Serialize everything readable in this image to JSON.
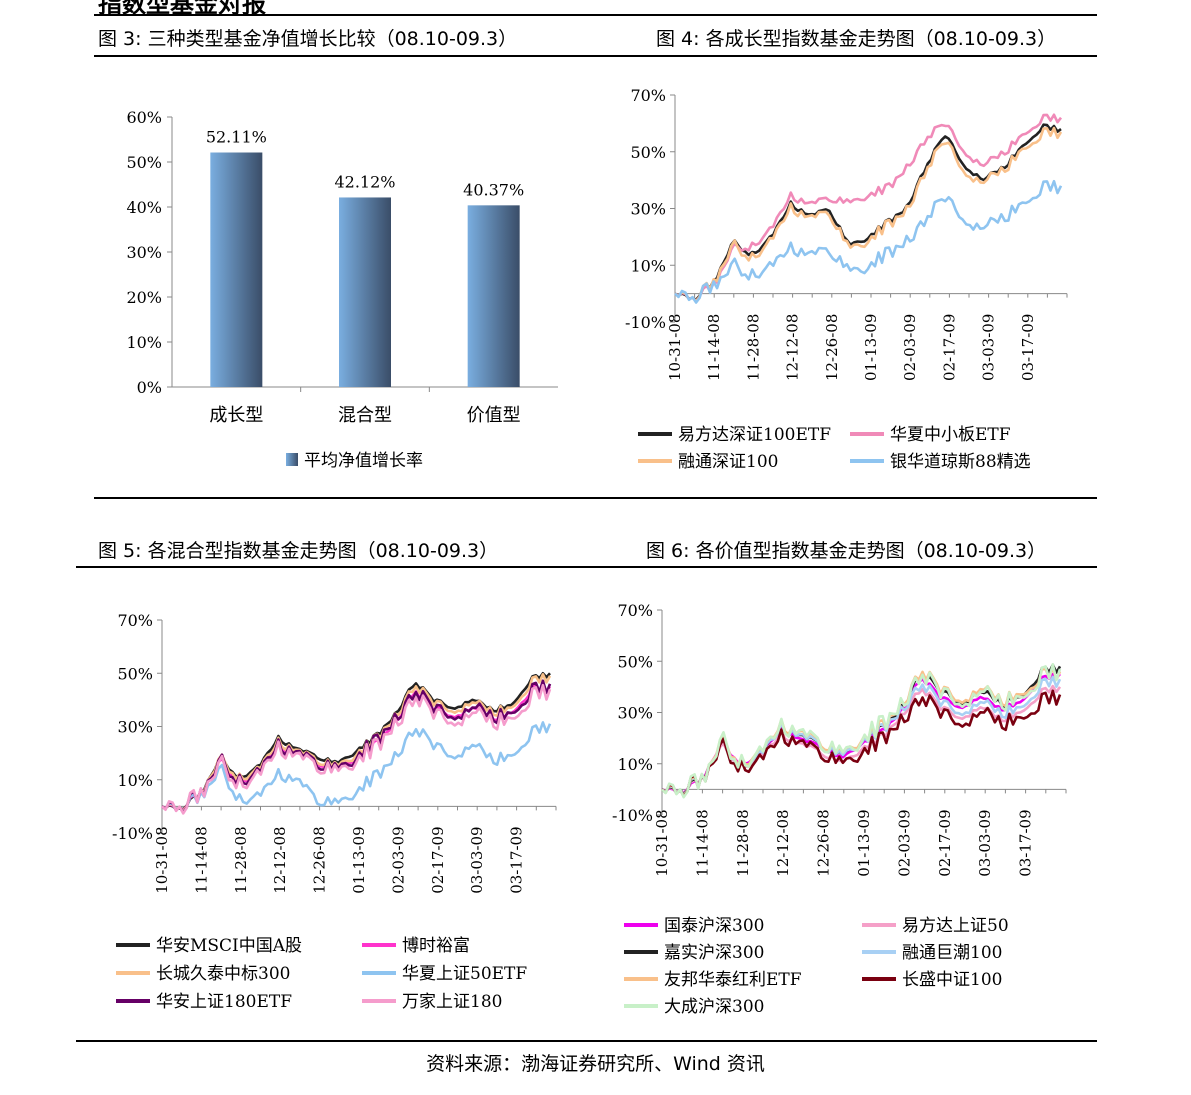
{
  "header_fragment": "指数型基金对报",
  "source_note": "资料来源：渤海证券研究所、Wind 资讯",
  "figures": [
    {
      "id": "fig3",
      "caption": "图 3:  三种类型基金净值增长比较（08.10-09.3）"
    },
    {
      "id": "fig4",
      "caption": "图 4:  各成长型指数基金走势图（08.10-09.3）"
    },
    {
      "id": "fig5",
      "caption": "图 5:  各混合型指数基金走势图（08.10-09.3）"
    },
    {
      "id": "fig6",
      "caption": "图 6:  各价值型指数基金走势图（08.10-09.3）"
    }
  ],
  "chart_data": [
    {
      "id": "fig3",
      "type": "bar",
      "categories": [
        "成长型",
        "混合型",
        "价值型"
      ],
      "values": [
        52.11,
        42.12,
        40.37
      ],
      "data_labels": [
        "52.11%",
        "42.12%",
        "40.37%"
      ],
      "ylim": [
        0,
        60
      ],
      "yticks": [
        "0%",
        "10%",
        "20%",
        "30%",
        "40%",
        "50%",
        "60%"
      ],
      "legend": "平均净值增长率",
      "legend_position": "bottom",
      "bar_color": "#7aaee0"
    },
    {
      "id": "fig4",
      "type": "line",
      "ylim": [
        -10,
        70
      ],
      "yticks": [
        "-10%",
        "10%",
        "30%",
        "50%",
        "70%"
      ],
      "xticks": [
        "10-31-08",
        "11-14-08",
        "11-28-08",
        "12-12-08",
        "12-26-08",
        "01-13-09",
        "02-03-09",
        "02-17-09",
        "03-03-09",
        "03-17-09"
      ],
      "legend_position": "bottom",
      "series": [
        {
          "name": "易方达深证100ETF",
          "color": "#222222",
          "values": [
            0,
            -2,
            4,
            18,
            14,
            20,
            32,
            27,
            30,
            17,
            20,
            25,
            30,
            45,
            56,
            45,
            40,
            44,
            52,
            59,
            58
          ]
        },
        {
          "name": "华夏中小板ETF",
          "color": "#f08ab8",
          "values": [
            0,
            -2,
            3,
            16,
            17,
            23,
            35,
            31,
            34,
            32,
            35,
            37,
            44,
            55,
            60,
            50,
            45,
            49,
            56,
            62,
            62
          ]
        },
        {
          "name": "融通深证100",
          "color": "#f9c08a",
          "values": [
            0,
            -2,
            4,
            17,
            13,
            19,
            31,
            26,
            29,
            16,
            19,
            24,
            29,
            44,
            54,
            43,
            39,
            43,
            51,
            57,
            57
          ]
        },
        {
          "name": "银华道琼斯88精选",
          "color": "#8ec4f0",
          "values": [
            0,
            -2,
            3,
            10,
            7,
            10,
            17,
            13,
            16,
            8,
            10,
            14,
            18,
            27,
            34,
            26,
            23,
            26,
            32,
            38,
            38
          ]
        }
      ]
    },
    {
      "id": "fig5",
      "type": "line",
      "ylim": [
        -10,
        70
      ],
      "yticks": [
        "-10%",
        "10%",
        "30%",
        "50%",
        "70%"
      ],
      "xticks": [
        "10-31-08",
        "11-14-08",
        "11-28-08",
        "12-12-08",
        "12-26-08",
        "01-13-09",
        "02-03-09",
        "02-17-09",
        "03-03-09",
        "03-17-09"
      ],
      "legend_position": "bottom",
      "series": [
        {
          "name": "华安MSCI中国A股",
          "color": "#222222",
          "values": [
            0,
            -1,
            5,
            18,
            11,
            15,
            26,
            21,
            19,
            16,
            21,
            26,
            34,
            47,
            40,
            37,
            40,
            36,
            38,
            48,
            50
          ]
        },
        {
          "name": "博时裕富",
          "color": "#ff33cc",
          "values": [
            0,
            -1,
            5,
            17,
            10,
            13,
            24,
            19,
            17,
            14,
            19,
            23,
            31,
            44,
            37,
            34,
            37,
            33,
            35,
            44,
            45
          ]
        },
        {
          "name": "长城久泰中标300",
          "color": "#f9c08a",
          "values": [
            0,
            -1,
            5,
            18,
            11,
            14,
            25,
            20,
            18,
            15,
            20,
            25,
            33,
            46,
            39,
            36,
            39,
            35,
            37,
            47,
            49
          ]
        },
        {
          "name": "华夏上证50ETF",
          "color": "#8ec4f0",
          "values": [
            0,
            -1,
            4,
            14,
            3,
            4,
            13,
            9,
            3,
            1,
            6,
            11,
            18,
            30,
            23,
            19,
            23,
            17,
            19,
            28,
            31
          ]
        },
        {
          "name": "华安上证180ETF",
          "color": "#660066",
          "values": [
            0,
            -1,
            5,
            17,
            10,
            13,
            24,
            19,
            17,
            14,
            19,
            24,
            32,
            44,
            37,
            34,
            37,
            33,
            35,
            44,
            46
          ]
        },
        {
          "name": "万家上证180",
          "color": "#f59ccc",
          "values": [
            0,
            -1,
            5,
            16,
            9,
            12,
            23,
            18,
            16,
            13,
            18,
            22,
            30,
            42,
            35,
            32,
            35,
            31,
            33,
            42,
            44
          ]
        }
      ]
    },
    {
      "id": "fig6",
      "type": "line",
      "ylim": [
        -10,
        70
      ],
      "yticks": [
        "-10%",
        "10%",
        "30%",
        "50%",
        "70%"
      ],
      "xticks": [
        "10-31-08",
        "11-14-08",
        "11-28-08",
        "12-12-08",
        "12-26-08",
        "01-13-09",
        "02-03-09",
        "02-17-09",
        "03-03-09",
        "03-17-09"
      ],
      "legend_position": "bottom",
      "series": [
        {
          "name": "国泰沪深300",
          "color": "#ee00ee",
          "values": [
            0,
            -1,
            4,
            18,
            10,
            14,
            24,
            19,
            17,
            12,
            18,
            22,
            30,
            44,
            36,
            32,
            36,
            31,
            34,
            43,
            45
          ]
        },
        {
          "name": "易方达上证50",
          "color": "#f5a0c8",
          "values": [
            0,
            -1,
            4,
            17,
            9,
            13,
            22,
            17,
            15,
            10,
            16,
            20,
            28,
            40,
            32,
            28,
            32,
            27,
            30,
            38,
            40
          ]
        },
        {
          "name": "嘉实沪深300",
          "color": "#222222",
          "values": [
            0,
            -1,
            4,
            18,
            10,
            14,
            25,
            20,
            18,
            13,
            19,
            23,
            31,
            46,
            38,
            34,
            38,
            33,
            36,
            46,
            48
          ]
        },
        {
          "name": "融通巨潮100",
          "color": "#a8d0f4",
          "values": [
            0,
            -1,
            4,
            18,
            10,
            14,
            25,
            20,
            18,
            13,
            19,
            23,
            30,
            42,
            34,
            30,
            34,
            29,
            32,
            41,
            43
          ]
        },
        {
          "name": "友邦华泰红利ETF",
          "color": "#f9c08a",
          "values": [
            0,
            -1,
            4,
            19,
            11,
            15,
            26,
            21,
            19,
            14,
            20,
            24,
            32,
            47,
            39,
            35,
            39,
            34,
            37,
            45,
            46
          ]
        },
        {
          "name": "长盛中证100",
          "color": "#7a0010",
          "values": [
            0,
            -1,
            4,
            17,
            9,
            12,
            22,
            17,
            15,
            10,
            15,
            19,
            26,
            37,
            30,
            26,
            30,
            25,
            28,
            35,
            37
          ]
        },
        {
          "name": "大成沪深300",
          "color": "#c8f0c8",
          "values": [
            0,
            -1,
            4,
            19,
            11,
            15,
            26,
            21,
            19,
            14,
            20,
            25,
            32,
            46,
            38,
            34,
            38,
            33,
            36,
            45,
            47
          ]
        }
      ]
    }
  ]
}
